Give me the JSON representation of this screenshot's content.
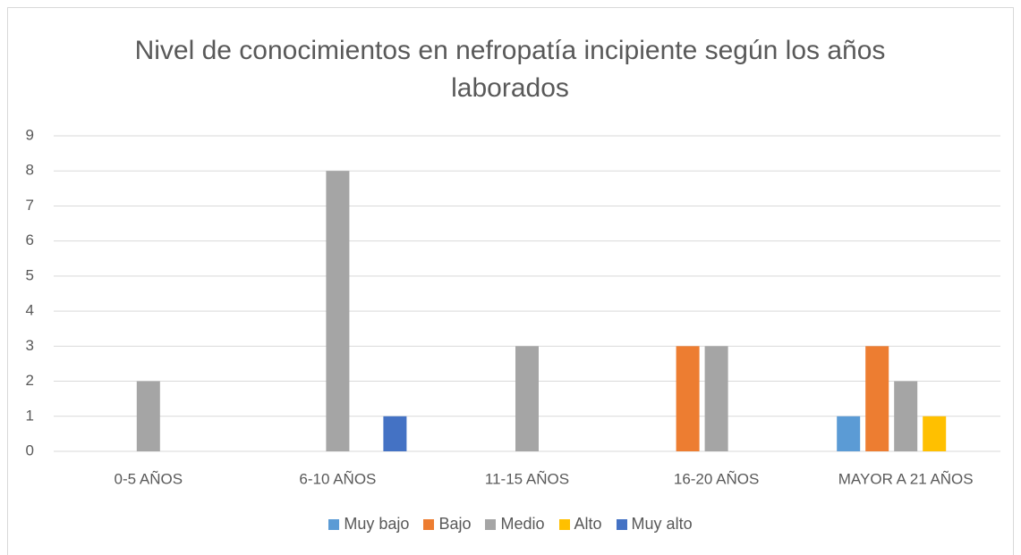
{
  "chart_data": {
    "type": "bar",
    "title": "Nivel de conocimientos en nefropatía incipiente según los años laborados",
    "categories": [
      "0-5 AÑOS",
      "6-10 AÑOS",
      "11-15 AÑOS",
      "16-20 AÑOS",
      "MAYOR A 21 AÑOS"
    ],
    "series": [
      {
        "name": "Muy bajo",
        "color": "#5b9bd5",
        "values": [
          0,
          0,
          0,
          0,
          1
        ]
      },
      {
        "name": "Bajo",
        "color": "#ed7d31",
        "values": [
          0,
          0,
          0,
          3,
          3
        ]
      },
      {
        "name": "Medio",
        "color": "#a5a5a5",
        "values": [
          2,
          8,
          3,
          3,
          2
        ]
      },
      {
        "name": "Alto",
        "color": "#ffc000",
        "values": [
          0,
          0,
          0,
          0,
          1
        ]
      },
      {
        "name": "Muy alto",
        "color": "#4472c4",
        "values": [
          0,
          1,
          0,
          0,
          0
        ]
      }
    ],
    "ylim": [
      0,
      9
    ],
    "yticks": [
      0,
      1,
      2,
      3,
      4,
      5,
      6,
      7,
      8,
      9
    ],
    "grid": true,
    "legend": "bottom"
  }
}
